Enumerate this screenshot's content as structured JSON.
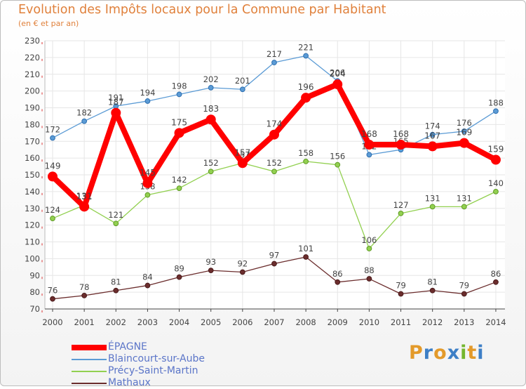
{
  "title": "Evolution des Impôts locaux pour la Commune par Habitant",
  "subtitle": "(en € et par an)",
  "chart_data": {
    "type": "line",
    "title": "Evolution des Impôts locaux pour la Commune par Habitant",
    "subtitle": "(en € et par an)",
    "xlabel": "",
    "ylabel": "",
    "x": [
      2000,
      2001,
      2002,
      2003,
      2004,
      2005,
      2006,
      2007,
      2008,
      2009,
      2010,
      2011,
      2012,
      2013,
      2014
    ],
    "ylim": [
      70,
      230
    ],
    "yticks": [
      70,
      80,
      90,
      100,
      110,
      120,
      130,
      140,
      150,
      160,
      170,
      180,
      190,
      200,
      210,
      220,
      230
    ],
    "grid": true,
    "legend_position": "bottom-left",
    "series": [
      {
        "name": "ÉPAGNE",
        "color": "#ff0000",
        "values": [
          149,
          131,
          187,
          145,
          175,
          183,
          157,
          174,
          196,
          204,
          168,
          168,
          167,
          169,
          159
        ]
      },
      {
        "name": "Blaincourt-sur-Aube",
        "color": "#5b9bd5",
        "values": [
          172,
          182,
          191,
          194,
          198,
          202,
          201,
          217,
          221,
          206,
          162,
          165,
          174,
          176,
          188
        ]
      },
      {
        "name": "Précy-Saint-Martin",
        "color": "#92d050",
        "values": [
          124,
          132,
          121,
          138,
          142,
          152,
          157,
          152,
          158,
          156,
          106,
          127,
          131,
          131,
          140
        ]
      },
      {
        "name": "Mathaux",
        "color": "#6b2d2d",
        "values": [
          76,
          78,
          81,
          84,
          89,
          93,
          92,
          97,
          101,
          86,
          88,
          79,
          81,
          79,
          86
        ]
      }
    ]
  },
  "logo": {
    "letters": [
      "P",
      "r",
      "o",
      "x",
      "i",
      "t",
      "i"
    ],
    "colors": [
      "#e39a2a",
      "#3d7fc6",
      "#e39a2a",
      "#3d7fc6",
      "#74b62e",
      "#e39a2a",
      "#3d7fc6"
    ]
  }
}
